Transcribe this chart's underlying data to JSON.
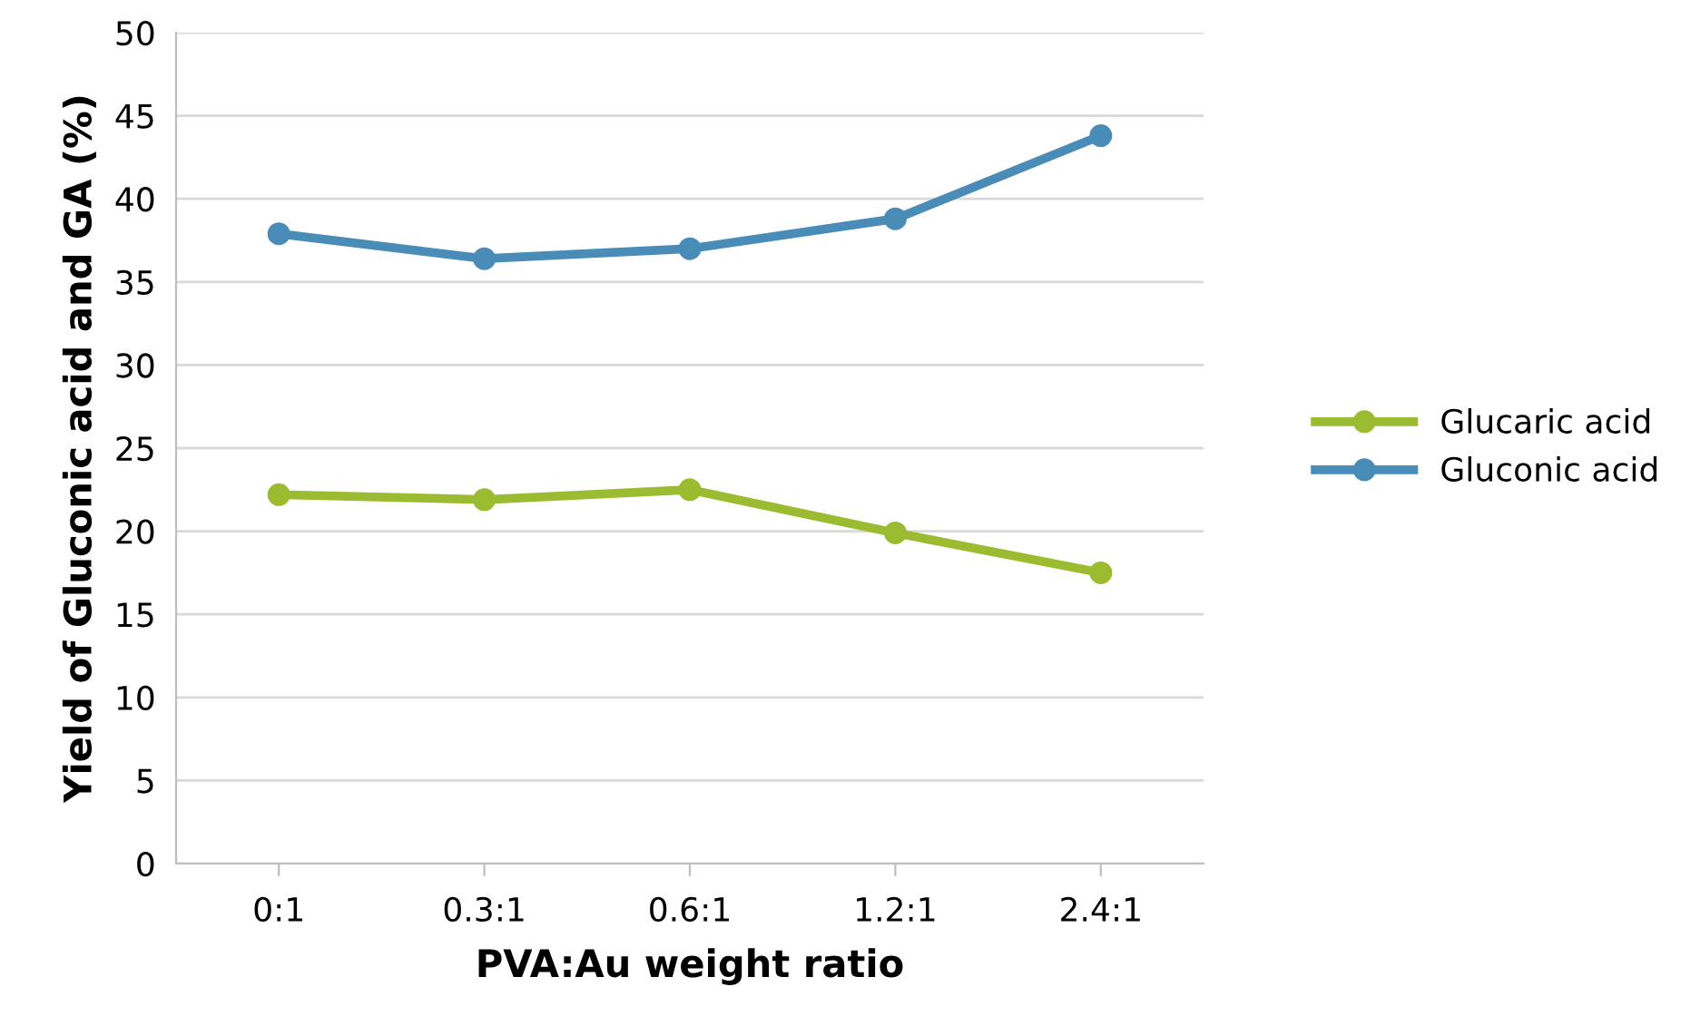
{
  "chart_data": {
    "type": "line",
    "xlabel": "PVA:Au weight ratio",
    "ylabel": "Yield of Gluconic acid and GA (%)",
    "categories": [
      "0:1",
      "0.3:1",
      "0.6:1",
      "1.2:1",
      "2.4:1"
    ],
    "series": [
      {
        "name": "Glucaric acid",
        "color": "#9bbb30",
        "values": [
          22.2,
          21.9,
          22.5,
          19.9,
          17.5
        ]
      },
      {
        "name": "Gluconic acid",
        "color": "#4a8cb8",
        "values": [
          37.9,
          36.4,
          37.0,
          38.8,
          43.8
        ]
      }
    ],
    "ylim": [
      0,
      50
    ],
    "yticks": [
      0,
      5,
      10,
      15,
      20,
      25,
      30,
      35,
      40,
      45,
      50
    ],
    "grid": "y",
    "legend": "right",
    "marker": "circle",
    "line_style": "solid"
  }
}
